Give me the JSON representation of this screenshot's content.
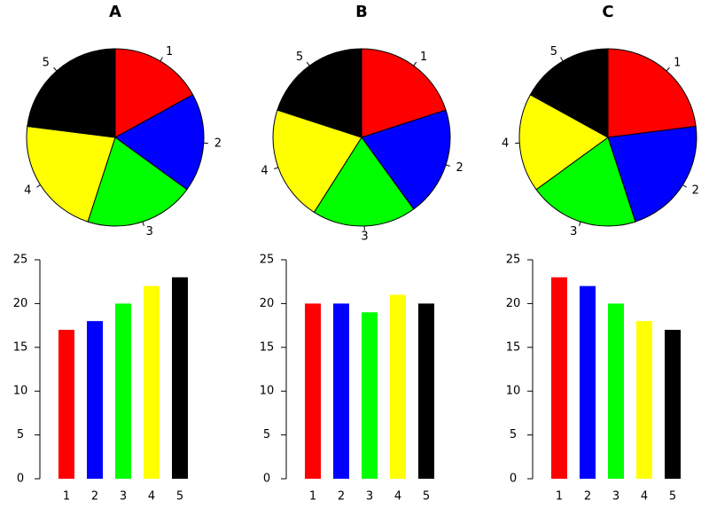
{
  "chart_data": [
    {
      "type": "pie",
      "title": "A",
      "categories": [
        "1",
        "2",
        "3",
        "4",
        "5"
      ],
      "values": [
        17,
        18,
        20,
        22,
        23
      ],
      "colors": [
        "#ff0000",
        "#0000ff",
        "#00ff00",
        "#ffff00",
        "#000000"
      ]
    },
    {
      "type": "pie",
      "title": "B",
      "categories": [
        "1",
        "2",
        "3",
        "4",
        "5"
      ],
      "values": [
        20,
        20,
        19,
        21,
        20
      ],
      "colors": [
        "#ff0000",
        "#0000ff",
        "#00ff00",
        "#ffff00",
        "#000000"
      ]
    },
    {
      "type": "pie",
      "title": "C",
      "categories": [
        "1",
        "2",
        "3",
        "4",
        "5"
      ],
      "values": [
        23,
        22,
        20,
        18,
        17
      ],
      "colors": [
        "#ff0000",
        "#0000ff",
        "#00ff00",
        "#ffff00",
        "#000000"
      ]
    },
    {
      "type": "bar",
      "categories": [
        "1",
        "2",
        "3",
        "4",
        "5"
      ],
      "values": [
        17,
        18,
        20,
        22,
        23
      ],
      "colors": [
        "#ff0000",
        "#0000ff",
        "#00ff00",
        "#ffff00",
        "#000000"
      ],
      "ylim": [
        0,
        25
      ],
      "yticks": [
        0,
        5,
        10,
        15,
        20,
        25
      ]
    },
    {
      "type": "bar",
      "categories": [
        "1",
        "2",
        "3",
        "4",
        "5"
      ],
      "values": [
        20,
        20,
        19,
        21,
        20
      ],
      "colors": [
        "#ff0000",
        "#0000ff",
        "#00ff00",
        "#ffff00",
        "#000000"
      ],
      "ylim": [
        0,
        25
      ],
      "yticks": [
        0,
        5,
        10,
        15,
        20,
        25
      ]
    },
    {
      "type": "bar",
      "categories": [
        "1",
        "2",
        "3",
        "4",
        "5"
      ],
      "values": [
        23,
        22,
        20,
        18,
        17
      ],
      "colors": [
        "#ff0000",
        "#0000ff",
        "#00ff00",
        "#ffff00",
        "#000000"
      ],
      "ylim": [
        0,
        25
      ],
      "yticks": [
        0,
        5,
        10,
        15,
        20,
        25
      ]
    }
  ]
}
